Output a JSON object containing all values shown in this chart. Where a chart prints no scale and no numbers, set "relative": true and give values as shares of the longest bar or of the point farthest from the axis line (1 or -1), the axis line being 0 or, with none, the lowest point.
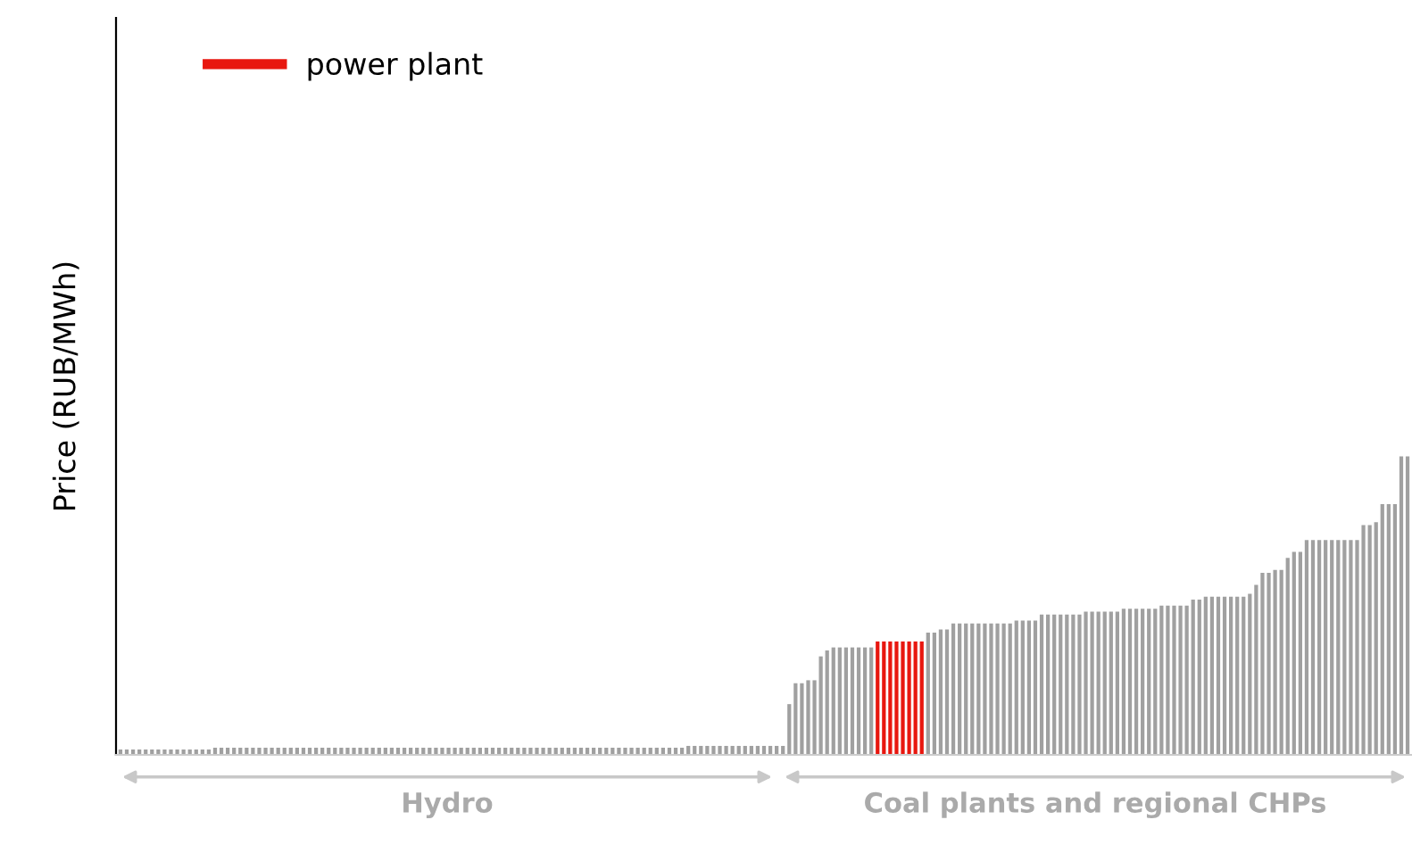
{
  "chart_data": {
    "type": "bar",
    "relative": true,
    "stacked": true,
    "ylabel": "Price (RUB/MWh)",
    "legend": "top left",
    "grid": false,
    "annotations": [
      "Hydro",
      "Coal plants and regional CHPs"
    ],
    "categories": [
      null,
      null,
      null,
      null,
      null,
      null,
      null,
      null,
      null,
      null,
      null,
      null,
      null,
      null,
      null,
      null,
      null,
      null,
      null,
      null,
      null,
      null,
      null,
      null,
      null,
      null,
      null,
      null,
      null,
      null,
      null,
      null,
      null,
      null,
      null,
      null,
      null,
      null,
      null,
      null,
      null,
      null,
      null,
      null,
      null,
      null,
      null,
      null,
      null,
      null,
      null,
      null,
      null,
      null,
      null,
      null,
      null,
      null,
      null,
      null,
      null,
      null,
      null,
      null,
      null,
      null,
      null,
      null,
      null,
      null,
      null,
      null,
      null,
      null,
      null,
      null,
      null,
      null,
      null,
      null,
      null,
      null,
      null,
      null,
      null,
      null,
      null,
      null,
      null,
      null,
      null,
      null,
      null,
      null,
      null,
      null,
      null,
      null,
      null,
      null,
      null,
      null,
      null,
      null,
      null,
      null,
      null,
      null,
      null,
      null,
      null,
      null,
      null,
      null,
      null,
      null,
      null,
      null,
      null,
      null,
      null,
      null,
      null,
      null,
      null,
      null,
      null,
      null,
      null,
      null,
      null,
      null,
      null,
      null,
      null,
      null,
      null,
      null,
      null,
      null,
      null,
      null,
      null,
      null,
      null,
      null,
      null,
      null,
      null,
      null,
      null,
      null,
      null,
      null,
      null,
      null,
      null,
      null,
      null,
      null,
      null,
      null,
      null,
      null,
      null,
      null,
      null,
      null,
      null,
      null,
      null,
      null,
      null,
      null,
      null,
      null,
      null,
      null,
      null,
      null,
      null,
      null,
      null,
      null,
      null,
      null,
      null,
      null,
      null,
      null,
      null,
      null,
      null,
      null,
      null,
      null,
      null,
      null,
      null,
      null,
      null,
      null,
      null,
      null,
      null
    ],
    "series": [
      {
        "color": "#a0a0a0",
        "values": [
          0.018,
          0.018,
          0.018,
          0.018,
          0.018,
          0.018,
          0.018,
          0.018,
          0.018,
          0.018,
          0.018,
          0.018,
          0.018,
          0.018,
          0.018,
          0.024,
          0.024,
          0.024,
          0.024,
          0.024,
          0.024,
          0.024,
          0.024,
          0.024,
          0.024,
          0.024,
          0.024,
          0.024,
          0.024,
          0.024,
          0.024,
          0.024,
          0.024,
          0.024,
          0.024,
          0.024,
          0.024,
          0.024,
          0.024,
          0.024,
          0.024,
          0.024,
          0.024,
          0.024,
          0.024,
          0.024,
          0.024,
          0.024,
          0.024,
          0.024,
          0.024,
          0.024,
          0.024,
          0.024,
          0.024,
          0.024,
          0.024,
          0.024,
          0.024,
          0.024,
          0.024,
          0.024,
          0.024,
          0.024,
          0.024,
          0.024,
          0.024,
          0.024,
          0.024,
          0.024,
          0.024,
          0.024,
          0.024,
          0.024,
          0.024,
          0.024,
          0.024,
          0.024,
          0.024,
          0.024,
          0.024,
          0.024,
          0.024,
          0.024,
          0.024,
          0.024,
          0.024,
          0.024,
          0.024,
          0.024,
          0.03,
          0.03,
          0.03,
          0.03,
          0.03,
          0.03,
          0.03,
          0.03,
          0.03,
          0.03,
          0.03,
          0.03,
          0.03,
          0.03,
          0.03,
          0.03,
          0.17,
          0.24,
          0.24,
          0.25,
          0.25,
          0.33,
          0.35,
          0.36,
          0.36,
          0.36,
          0.36,
          0.36,
          0.36,
          0.36,
          0,
          0,
          0,
          0,
          0,
          0,
          0,
          0,
          0.41,
          0.41,
          0.42,
          0.42,
          0.44,
          0.44,
          0.44,
          0.44,
          0.44,
          0.44,
          0.44,
          0.44,
          0.44,
          0.44,
          0.45,
          0.45,
          0.45,
          0.45,
          0.47,
          0.47,
          0.47,
          0.47,
          0.47,
          0.47,
          0.47,
          0.48,
          0.48,
          0.48,
          0.48,
          0.48,
          0.48,
          0.49,
          0.49,
          0.49,
          0.49,
          0.49,
          0.49,
          0.5,
          0.5,
          0.5,
          0.5,
          0.5,
          0.52,
          0.52,
          0.53,
          0.53,
          0.53,
          0.53,
          0.53,
          0.53,
          0.53,
          0.54,
          0.57,
          0.61,
          0.61,
          0.62,
          0.62,
          0.66,
          0.68,
          0.68,
          0.72,
          0.72,
          0.72,
          0.72,
          0.72,
          0.72,
          0.72,
          0.72,
          0.72,
          0.77,
          0.77,
          0.78,
          0.84,
          0.84,
          0.84,
          1,
          1
        ]
      },
      {
        "name": "power plant",
        "color": "#e8170f",
        "values": [
          0,
          0,
          0,
          0,
          0,
          0,
          0,
          0,
          0,
          0,
          0,
          0,
          0,
          0,
          0,
          0,
          0,
          0,
          0,
          0,
          0,
          0,
          0,
          0,
          0,
          0,
          0,
          0,
          0,
          0,
          0,
          0,
          0,
          0,
          0,
          0,
          0,
          0,
          0,
          0,
          0,
          0,
          0,
          0,
          0,
          0,
          0,
          0,
          0,
          0,
          0,
          0,
          0,
          0,
          0,
          0,
          0,
          0,
          0,
          0,
          0,
          0,
          0,
          0,
          0,
          0,
          0,
          0,
          0,
          0,
          0,
          0,
          0,
          0,
          0,
          0,
          0,
          0,
          0,
          0,
          0,
          0,
          0,
          0,
          0,
          0,
          0,
          0,
          0,
          0,
          0,
          0,
          0,
          0,
          0,
          0,
          0,
          0,
          0,
          0,
          0,
          0,
          0,
          0,
          0,
          0,
          0,
          0,
          0,
          0,
          0,
          0,
          0,
          0,
          0,
          0,
          0,
          0,
          0,
          0,
          0.38,
          0.38,
          0.38,
          0.38,
          0.38,
          0.38,
          0.38,
          0.38,
          0,
          0,
          0,
          0,
          0,
          0,
          0,
          0,
          0,
          0,
          0,
          0,
          0,
          0,
          0,
          0,
          0,
          0,
          0,
          0,
          0,
          0,
          0,
          0,
          0,
          0,
          0,
          0,
          0,
          0,
          0,
          0,
          0,
          0,
          0,
          0,
          0,
          0,
          0,
          0,
          0,
          0,
          0,
          0,
          0,
          0,
          0,
          0,
          0,
          0,
          0,
          0,
          0,
          0,
          0,
          0,
          0,
          0,
          0,
          0,
          0,
          0,
          0,
          0,
          0,
          0,
          0,
          0,
          0,
          0,
          0,
          0,
          0,
          0,
          0,
          0,
          0
        ]
      }
    ]
  }
}
